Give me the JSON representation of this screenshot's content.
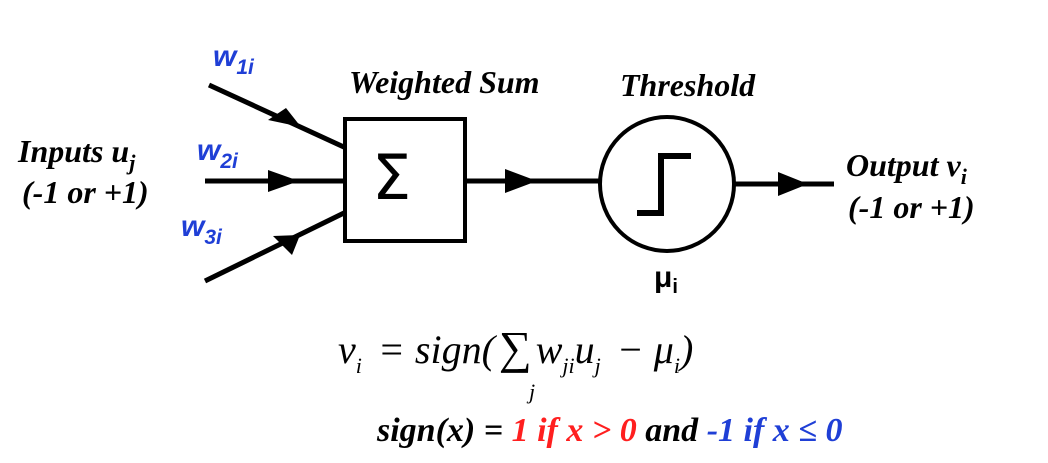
{
  "colors": {
    "stroke": "#000000",
    "weight_label": "#1f3fd6",
    "true_case": "#ff1f1f",
    "false_case": "#1f3fd6"
  },
  "inputs": {
    "label": "Inputs u",
    "label_sub": "j",
    "range": "(-1 or +1)"
  },
  "weights": [
    {
      "base": "w",
      "sub": "1i"
    },
    {
      "base": "w",
      "sub": "2i"
    },
    {
      "base": "w",
      "sub": "3i"
    }
  ],
  "weighted_sum": {
    "title": "Weighted Sum",
    "symbol": "Σ"
  },
  "threshold": {
    "title": "Threshold",
    "param": "μ",
    "param_sub": "i"
  },
  "output": {
    "label": "Output v",
    "label_sub": "i",
    "range": "(-1 or +1)"
  },
  "equation": {
    "lhs": "v",
    "lhs_sub": "i",
    "equals_sign": "= sign(",
    "sum_symbol": "∑",
    "sum_index": "j",
    "w": "w",
    "w_sub": "ji",
    "u": "u",
    "u_sub": "j",
    "minus": "− μ",
    "mu_sub": "i",
    "close": ")"
  },
  "sign_def": {
    "prefix": "sign(x) = ",
    "true_case": "1 if x > 0",
    "and_word": " and ",
    "false_case": "-1 if x ≤ 0"
  }
}
